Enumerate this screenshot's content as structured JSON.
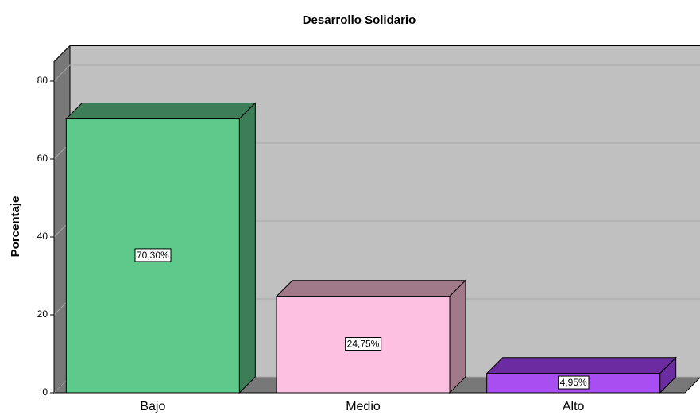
{
  "chart_data": {
    "type": "bar3d",
    "title": "Desarrollo Solidario",
    "ylabel": "Porcentaje",
    "categories": [
      "Bajo",
      "Medio",
      "Alto"
    ],
    "values": [
      70.3,
      24.75,
      4.95
    ],
    "value_labels": [
      "70,30%",
      "24,75%",
      "4,95%"
    ],
    "colors": [
      "#5ec98a",
      "#fdc0e0",
      "#a94ef0"
    ],
    "side_colors": [
      "#3d7d58",
      "#a07a88",
      "#6a2ca0"
    ],
    "ylim": [
      0,
      85
    ],
    "yticks": [
      0,
      20,
      40,
      60,
      80
    ],
    "grid": true
  }
}
